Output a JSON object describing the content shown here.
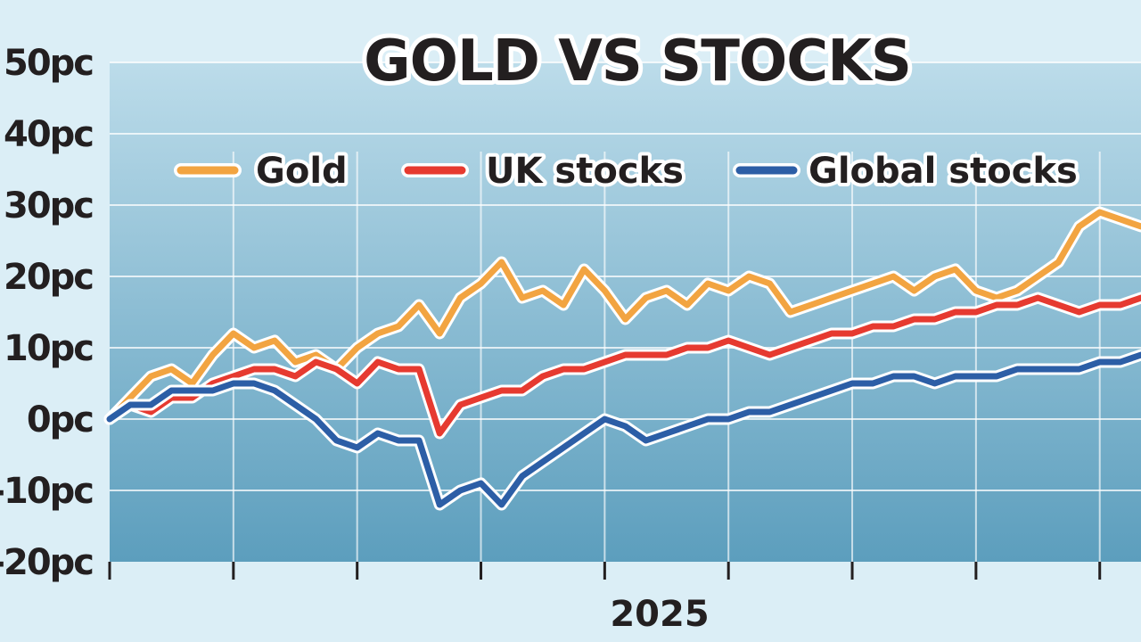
{
  "chart_data": {
    "type": "line",
    "title": "GOLD VS STOCKS",
    "xlabel": "2025",
    "ylabel": "",
    "ylim": [
      -20,
      50
    ],
    "yticks": [
      50,
      40,
      30,
      20,
      10,
      0,
      -10,
      -20
    ],
    "ytick_labels": [
      "50pc",
      "40pc",
      "30pc",
      "20pc",
      "10pc",
      "0pc",
      "-10pc",
      "-20pc"
    ],
    "legend_position": "top",
    "grid": true,
    "colors": {
      "plot_top": "#bcdcea",
      "plot_bottom": "#5c9ebd",
      "gold": "#f2a441",
      "uk": "#e63a30",
      "global": "#2c5ea6",
      "halo": "#ffffff",
      "text": "#231f20"
    },
    "x": [
      0,
      2,
      4,
      6,
      8,
      10,
      12,
      14,
      16,
      18,
      20,
      22,
      24,
      26,
      28,
      30,
      32,
      34,
      36,
      38,
      40,
      42,
      44,
      46,
      48,
      50,
      52,
      54,
      56,
      58,
      60,
      62,
      64,
      66,
      68,
      70,
      72,
      74,
      76,
      78,
      80,
      82,
      84,
      86,
      88,
      90,
      92,
      94,
      96,
      98,
      100
    ],
    "series": [
      {
        "name": "Gold",
        "color_key": "gold",
        "values": [
          0,
          3,
          6,
          7,
          5,
          9,
          12,
          10,
          11,
          8,
          9,
          7,
          10,
          12,
          13,
          16,
          12,
          17,
          19,
          22,
          17,
          18,
          16,
          21,
          18,
          14,
          17,
          18,
          16,
          19,
          18,
          20,
          19,
          15,
          16,
          17,
          18,
          19,
          20,
          18,
          20,
          21,
          18,
          17,
          18,
          20,
          22,
          27,
          29,
          28,
          27
        ]
      },
      {
        "name": "UK stocks",
        "color_key": "uk",
        "values": [
          0,
          2,
          1,
          3,
          3,
          5,
          6,
          7,
          7,
          6,
          8,
          7,
          5,
          8,
          7,
          7,
          -2,
          2,
          3,
          4,
          4,
          6,
          7,
          7,
          8,
          9,
          9,
          9,
          10,
          10,
          11,
          10,
          9,
          10,
          11,
          12,
          12,
          13,
          13,
          14,
          14,
          15,
          15,
          16,
          16,
          17,
          16,
          15,
          16,
          16,
          17
        ]
      },
      {
        "name": "Global stocks",
        "color_key": "global",
        "values": [
          0,
          2,
          2,
          4,
          4,
          4,
          5,
          5,
          4,
          2,
          0,
          -3,
          -4,
          -2,
          -3,
          -3,
          -12,
          -10,
          -9,
          -12,
          -8,
          -6,
          -4,
          -2,
          0,
          -1,
          -3,
          -2,
          -1,
          0,
          0,
          1,
          1,
          2,
          3,
          4,
          5,
          5,
          6,
          6,
          5,
          6,
          6,
          6,
          7,
          7,
          7,
          7,
          8,
          8,
          9
        ]
      }
    ]
  }
}
